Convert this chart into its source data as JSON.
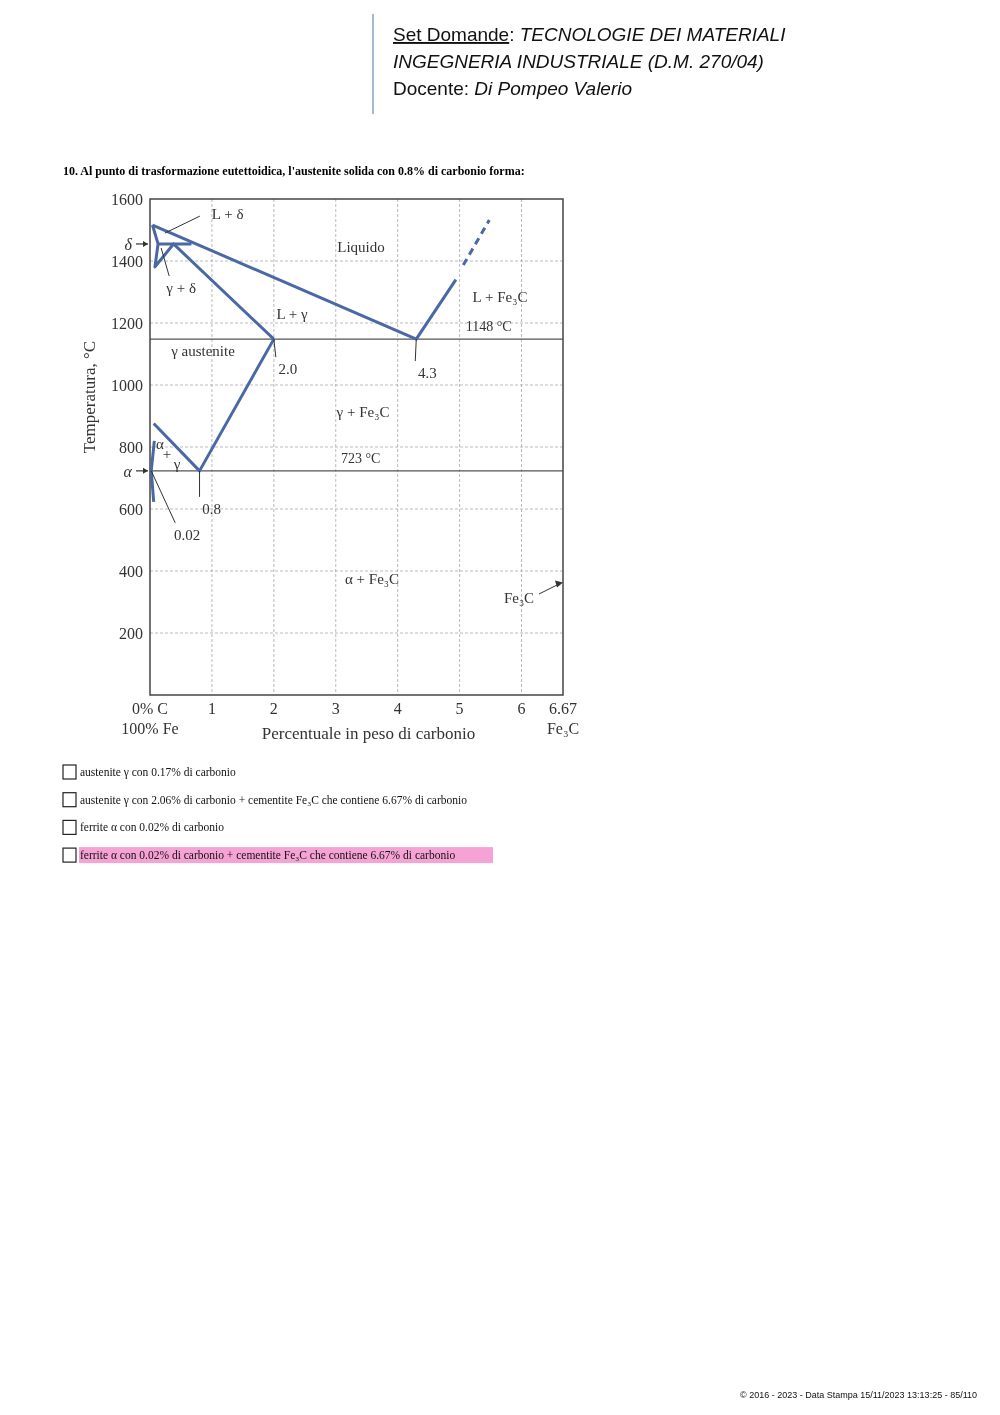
{
  "chart_data": {
    "type": "line",
    "title": "10.   Al punto di trasformazione eutettoidica, l'austenite solida con 0.8% di carbonio forma:",
    "xlabel": "Percentuale in peso di carbonio",
    "ylabel": "Temperatura, °C",
    "xlim": [
      0,
      6.67
    ],
    "xticks": [
      {
        "value": 0,
        "label": "0% C\n100% Fe"
      },
      1,
      2,
      3,
      4,
      5,
      6,
      {
        "value": 6.67,
        "label": "6.67\nFe₃C"
      }
    ],
    "ylim": [
      0,
      1600
    ],
    "yticks": [
      200,
      400,
      600,
      {
        "value": 723,
        "label": "α"
      },
      800,
      1000,
      1200,
      1400,
      {
        "value": 1455,
        "label": "δ"
      },
      1600
    ],
    "grid": true,
    "marker": "none",
    "line_style": "solid",
    "series": [
      {
        "color": "#4a68a4",
        "x": [
          0.04,
          4.3,
          4.94
        ],
        "values": [
          1516,
          1148,
          1340
        ]
      },
      {
        "color": "#4a68a4",
        "line_style": "dashed",
        "x": [
          5.06,
          5.48
        ],
        "values": [
          1387,
          1532
        ]
      },
      {
        "color": "#4a68a4",
        "x": [
          0.04,
          0.13,
          0.08,
          0.38,
          2.0
        ],
        "values": [
          1516,
          1455,
          1381,
          1455,
          1148
        ]
      },
      {
        "color": "#4a68a4",
        "x": [
          0.13,
          0.67
        ],
        "values": [
          1455,
          1455
        ]
      },
      {
        "color": "#4a68a4",
        "x": [
          0.06,
          0.8,
          2.0
        ],
        "values": [
          876,
          723,
          1148
        ]
      },
      {
        "color": "#4a68a4",
        "x": [
          0.07,
          0.02,
          0.06
        ],
        "values": [
          820,
          723,
          623
        ]
      }
    ],
    "ref_lines": [
      {
        "axis": "y",
        "value": 1148,
        "label": "1148 °C",
        "color": "#555555"
      },
      {
        "axis": "y",
        "value": 723,
        "label": "723 °C",
        "color": "#555555"
      }
    ],
    "annotations": [
      "Set Domande: TECNOLOGIE DEI MATERIALI",
      "INGEGNERIA INDUSTRIALE (D.M. 270/04)",
      "Docente: Di Pompeo Valerio",
      {
        "text": "L + δ",
        "x": 0.24,
        "y": 1490
      },
      {
        "text": "γ + δ",
        "x": 0.18,
        "y": 1442
      },
      {
        "text": "2.0",
        "x": 2.0,
        "y": 1148
      },
      {
        "text": "4.3",
        "x": 4.3,
        "y": 1148
      },
      {
        "text": "0.8",
        "x": 0.8,
        "y": 723
      },
      {
        "text": "0.02",
        "x": 0.02,
        "y": 723
      },
      "Fe₃C",
      "Liquido",
      "L + Fe₃C",
      "L + γ",
      "γ austenite",
      "γ + Fe₃C",
      "α",
      "+",
      "γ",
      "α + Fe₃C",
      "austenite γ con 0.17% di carbonio",
      "austenite γ con 2.06% di carbonio + cementite Fe₃C che contiene 6.67% di carbonio",
      "ferrite α con 0.02% di carbonio",
      "ferrite α con 0.02% di carbonio + cementite Fe₃C che contiene 6.67% di carbonio",
      "© 2016 - 2023 - Data Stampa 15/11/2023 13:13:25 - 85/110"
    ]
  }
}
